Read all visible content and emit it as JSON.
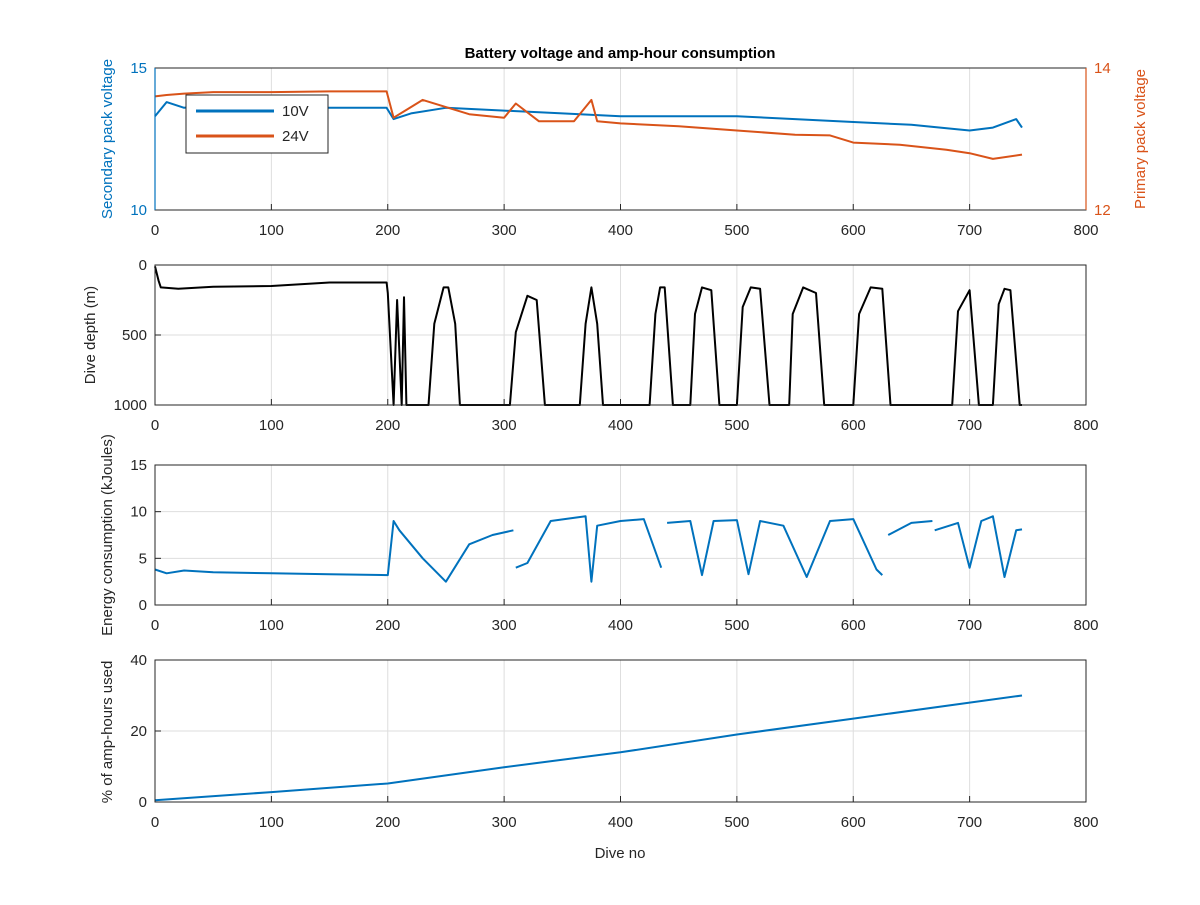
{
  "colors": {
    "blue": "#0072BD",
    "orange": "#D95319",
    "black": "#000000",
    "axis": "#262626",
    "grid": "#dedede"
  },
  "chart_data": [
    {
      "type": "line",
      "title": "Battery voltage and amp-hour consumption",
      "xlabel": "",
      "ylabel": "Secondary pack voltage",
      "ylabel_right": "Primary pack voltage",
      "xlim": [
        0,
        800
      ],
      "ylim": [
        10,
        15
      ],
      "ylim_right": [
        12,
        14
      ],
      "xticks": [
        "0",
        "100",
        "200",
        "300",
        "400",
        "500",
        "600",
        "700",
        "800"
      ],
      "yticks": [
        "10",
        "15"
      ],
      "yticks_right": [
        "12",
        "14"
      ],
      "legend": {
        "placement": "top-left",
        "entries": [
          "10V",
          "24V"
        ]
      },
      "grid": true,
      "series": [
        {
          "name": "10V",
          "axis": "left",
          "x": [
            0,
            10,
            25,
            50,
            75,
            100,
            150,
            199,
            205,
            220,
            250,
            300,
            350,
            400,
            450,
            500,
            550,
            600,
            650,
            700,
            720,
            740,
            745
          ],
          "values": [
            13.3,
            13.8,
            13.6,
            13.7,
            13.5,
            13.6,
            13.6,
            13.6,
            13.2,
            13.4,
            13.6,
            13.5,
            13.4,
            13.3,
            13.3,
            13.3,
            13.2,
            13.1,
            13.0,
            12.8,
            12.9,
            13.2,
            12.9
          ]
        },
        {
          "name": "24V",
          "axis": "right",
          "x": [
            0,
            10,
            25,
            50,
            75,
            100,
            150,
            199,
            205,
            215,
            230,
            250,
            270,
            300,
            310,
            330,
            360,
            375,
            380,
            400,
            450,
            500,
            550,
            580,
            600,
            640,
            680,
            700,
            720,
            745
          ],
          "values": [
            13.6,
            13.62,
            13.64,
            13.66,
            13.66,
            13.66,
            13.67,
            13.67,
            13.3,
            13.4,
            13.55,
            13.45,
            13.35,
            13.3,
            13.5,
            13.25,
            13.25,
            13.55,
            13.25,
            13.22,
            13.18,
            13.12,
            13.06,
            13.05,
            12.95,
            12.92,
            12.85,
            12.8,
            12.72,
            12.78
          ]
        }
      ]
    },
    {
      "type": "line",
      "title": "",
      "xlabel": "",
      "ylabel": "Dive depth (m)",
      "xlim": [
        0,
        800
      ],
      "ylim": [
        0,
        1000
      ],
      "y_reversed": true,
      "xticks": [
        "0",
        "100",
        "200",
        "300",
        "400",
        "500",
        "600",
        "700",
        "800"
      ],
      "yticks": [
        "0",
        "500",
        "1000"
      ],
      "grid": true,
      "series": [
        {
          "x": [
            0,
            3,
            5,
            20,
            50,
            100,
            150,
            199,
            200,
            205,
            208,
            212,
            214,
            216,
            218,
            235,
            240,
            248,
            252,
            258,
            262,
            305,
            310,
            320,
            328,
            335,
            365,
            370,
            375,
            380,
            385,
            425,
            430,
            434,
            438,
            445,
            460,
            464,
            470,
            478,
            485,
            500,
            505,
            512,
            520,
            528,
            545,
            548,
            557,
            568,
            575,
            600,
            605,
            615,
            625,
            632,
            680,
            685,
            690,
            700,
            708,
            720,
            725,
            730,
            735,
            743,
            745
          ],
          "values": [
            10,
            110,
            160,
            170,
            155,
            150,
            125,
            125,
            200,
            1000,
            250,
            1000,
            230,
            1000,
            1000,
            1000,
            420,
            160,
            160,
            420,
            1000,
            1000,
            480,
            220,
            250,
            1000,
            1000,
            420,
            160,
            420,
            1000,
            1000,
            350,
            160,
            160,
            1000,
            1000,
            350,
            160,
            180,
            1000,
            1000,
            300,
            160,
            170,
            1000,
            1000,
            350,
            160,
            200,
            1000,
            1000,
            350,
            160,
            170,
            1000,
            1000,
            1000,
            330,
            180,
            1000,
            1000,
            280,
            170,
            180,
            1000,
            1000
          ]
        }
      ]
    },
    {
      "type": "line",
      "title": "",
      "xlabel": "",
      "ylabel": "Energy consumption (kJoules)",
      "xlim": [
        0,
        800
      ],
      "ylim": [
        0,
        15
      ],
      "xticks": [
        "0",
        "100",
        "200",
        "300",
        "400",
        "500",
        "600",
        "700",
        "800"
      ],
      "yticks": [
        "0",
        "5",
        "10",
        "15"
      ],
      "grid": true,
      "series": [
        {
          "x": [
            0,
            10,
            25,
            50,
            100,
            150,
            200,
            205,
            210,
            230,
            250,
            270,
            290,
            308,
            null,
            310,
            320,
            340,
            370,
            375,
            380,
            400,
            420,
            435,
            null,
            440,
            460,
            470,
            480,
            500,
            510,
            520,
            540,
            560,
            580,
            600,
            620,
            625,
            null,
            630,
            650,
            668,
            null,
            670,
            690,
            700,
            710,
            720,
            730,
            740,
            745
          ],
          "values": [
            3.8,
            3.4,
            3.7,
            3.5,
            3.4,
            3.3,
            3.2,
            9.0,
            8.0,
            5.0,
            2.5,
            6.5,
            7.5,
            8.0,
            null,
            4.0,
            4.5,
            9.0,
            9.5,
            2.5,
            8.5,
            9.0,
            9.2,
            4.0,
            null,
            8.8,
            9.0,
            3.2,
            9.0,
            9.1,
            3.3,
            9.0,
            8.5,
            3.0,
            9.0,
            9.2,
            3.8,
            3.2,
            null,
            7.5,
            8.8,
            9.0,
            null,
            8.0,
            8.8,
            4.0,
            9.0,
            9.5,
            3.0,
            8.0,
            8.1
          ]
        }
      ]
    },
    {
      "type": "line",
      "title": "",
      "xlabel": "Dive no",
      "ylabel": "% of amp-hours used",
      "xlim": [
        0,
        800
      ],
      "ylim": [
        0,
        40
      ],
      "xticks": [
        "0",
        "100",
        "200",
        "300",
        "400",
        "500",
        "600",
        "700",
        "800"
      ],
      "yticks": [
        "0",
        "20",
        "40"
      ],
      "grid": true,
      "series": [
        {
          "x": [
            0,
            100,
            200,
            300,
            400,
            500,
            600,
            700,
            745
          ],
          "values": [
            0.5,
            2.8,
            5.2,
            9.8,
            14.0,
            19.0,
            23.5,
            28.0,
            30.0
          ]
        }
      ]
    }
  ]
}
